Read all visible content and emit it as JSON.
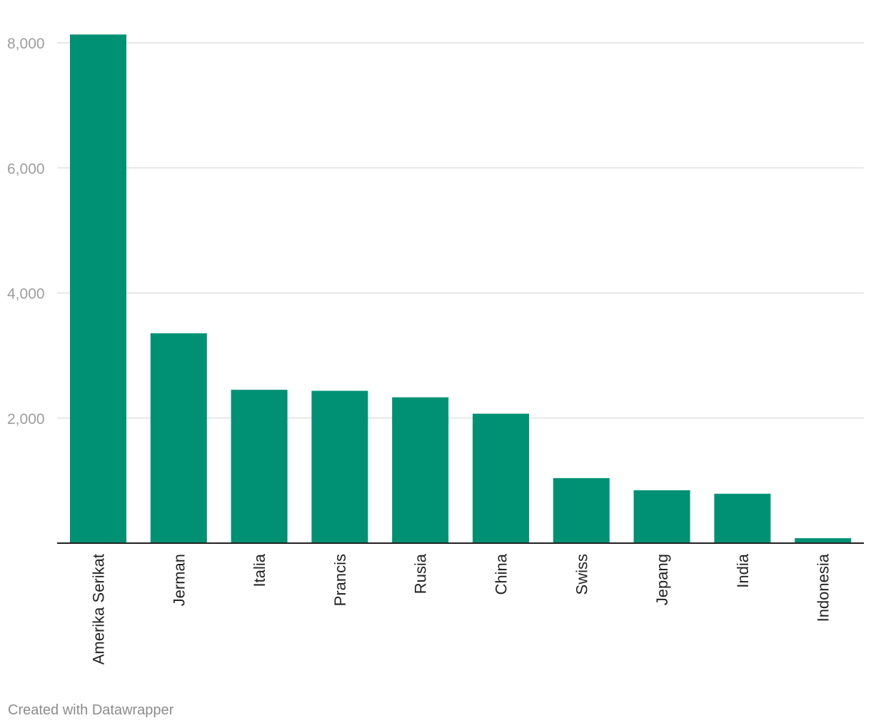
{
  "chart_data": {
    "type": "bar",
    "categories": [
      "Amerika Serikat",
      "Jerman",
      "Italia",
      "Prancis",
      "Rusia",
      "China",
      "Swiss",
      "Jepang",
      "India",
      "Indonesia"
    ],
    "values": [
      8133,
      3355,
      2452,
      2436,
      2332,
      2070,
      1040,
      846,
      790,
      79
    ],
    "ylim": [
      0,
      8000
    ],
    "yticks": [
      2000,
      4000,
      6000,
      8000
    ],
    "ytick_labels": [
      "2,000",
      "4,000",
      "6,000",
      "8,000"
    ],
    "grid": true,
    "bar_color": "#009175"
  },
  "footer": {
    "credit": "Created with Datawrapper"
  }
}
